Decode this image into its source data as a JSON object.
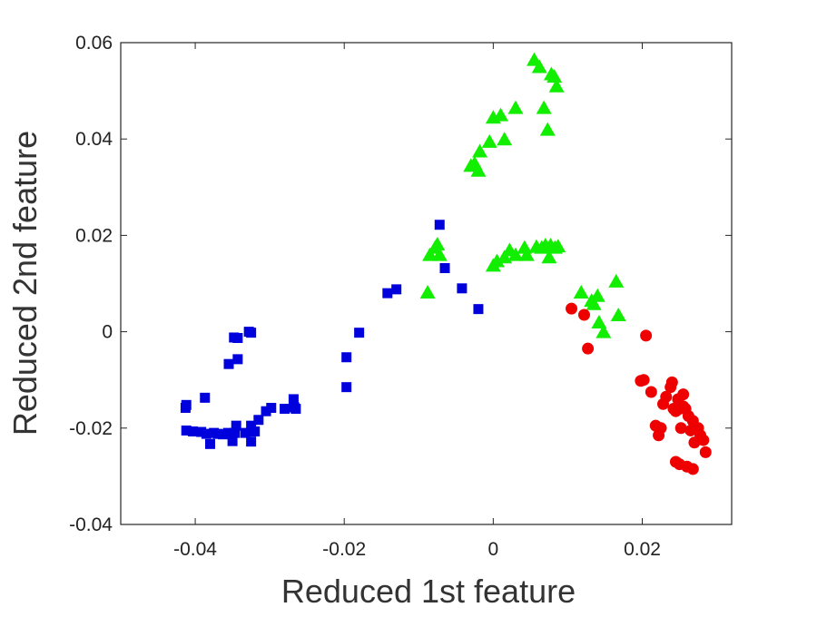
{
  "chart_data": {
    "type": "scatter",
    "title": "",
    "xlabel": "Reduced 1st feature",
    "ylabel": "Reduced 2nd feature",
    "xlim": [
      -0.05,
      0.032
    ],
    "ylim": [
      -0.04,
      0.06
    ],
    "xticks": [
      -0.04,
      -0.02,
      0,
      0.02
    ],
    "xtick_labels": [
      "-0.04",
      "-0.02",
      "0",
      "0.02"
    ],
    "yticks": [
      -0.04,
      -0.02,
      0,
      0.02,
      0.04,
      0.06
    ],
    "ytick_labels": [
      "-0.04",
      "-0.02",
      "0",
      "0.02",
      "0.04",
      "0.06"
    ],
    "grid": false,
    "legend": "none",
    "series": [
      {
        "marker": "square",
        "color": "#0000dd",
        "points": [
          [
            -0.0413,
            -0.0158
          ],
          [
            -0.0412,
            -0.0152
          ],
          [
            -0.0412,
            -0.0205
          ],
          [
            -0.0403,
            -0.0207
          ],
          [
            -0.0392,
            -0.0208
          ],
          [
            -0.0387,
            -0.0137
          ],
          [
            -0.0385,
            -0.0212
          ],
          [
            -0.038,
            -0.0233
          ],
          [
            -0.0375,
            -0.021
          ],
          [
            -0.037,
            -0.0212
          ],
          [
            -0.0363,
            -0.0213
          ],
          [
            -0.0356,
            -0.021
          ],
          [
            -0.0355,
            -0.0067
          ],
          [
            -0.035,
            -0.0227
          ],
          [
            -0.0348,
            -0.0012
          ],
          [
            -0.0347,
            -0.021
          ],
          [
            -0.0345,
            -0.0195
          ],
          [
            -0.0343,
            -0.0013
          ],
          [
            -0.0343,
            -0.0057
          ],
          [
            -0.0333,
            -0.021
          ],
          [
            -0.0328,
            0.0
          ],
          [
            -0.0325,
            -0.0002
          ],
          [
            -0.0325,
            -0.0228
          ],
          [
            -0.0325,
            -0.0195
          ],
          [
            -0.032,
            -0.0207
          ],
          [
            -0.0315,
            -0.0183
          ],
          [
            -0.0305,
            -0.0165
          ],
          [
            -0.0298,
            -0.0158
          ],
          [
            -0.028,
            -0.016
          ],
          [
            -0.0268,
            -0.014
          ],
          [
            -0.0267,
            -0.0157
          ],
          [
            -0.0265,
            -0.016
          ],
          [
            -0.0197,
            -0.0053
          ],
          [
            -0.0197,
            -0.0115
          ],
          [
            -0.018,
            -0.0002
          ],
          [
            -0.0142,
            0.008
          ],
          [
            -0.013,
            0.0088
          ],
          [
            -0.0072,
            0.0222
          ],
          [
            -0.0065,
            0.0132
          ],
          [
            -0.0042,
            0.009
          ],
          [
            -0.002,
            0.0047
          ]
        ]
      },
      {
        "marker": "triangle",
        "color": "#11ee00",
        "points": [
          [
            -0.0088,
            0.0082
          ],
          [
            -0.0085,
            0.016
          ],
          [
            -0.0078,
            0.0175
          ],
          [
            -0.0075,
            0.0182
          ],
          [
            -0.0072,
            0.016
          ],
          [
            -0.003,
            0.0345
          ],
          [
            -0.0025,
            0.035
          ],
          [
            -0.002,
            0.0335
          ],
          [
            -0.0018,
            0.0375
          ],
          [
            -0.0005,
            0.0395
          ],
          [
            0.0,
            0.0445
          ],
          [
            0.0,
            0.0138
          ],
          [
            0.0005,
            0.0147
          ],
          [
            0.001,
            0.045
          ],
          [
            0.0015,
            0.0155
          ],
          [
            0.0015,
            0.04
          ],
          [
            0.0022,
            0.017
          ],
          [
            0.003,
            0.0465
          ],
          [
            0.003,
            0.016
          ],
          [
            0.0042,
            0.0175
          ],
          [
            0.0045,
            0.016
          ],
          [
            0.0055,
            0.0565
          ],
          [
            0.0058,
            0.0177
          ],
          [
            0.0062,
            0.055
          ],
          [
            0.0065,
            0.0175
          ],
          [
            0.0068,
            0.0465
          ],
          [
            0.007,
            0.018
          ],
          [
            0.0073,
            0.042
          ],
          [
            0.0075,
            0.0155
          ],
          [
            0.0077,
            0.018
          ],
          [
            0.0078,
            0.0535
          ],
          [
            0.0082,
            0.053
          ],
          [
            0.0083,
            0.0175
          ],
          [
            0.0085,
            0.051
          ],
          [
            0.0087,
            0.0178
          ],
          [
            0.0118,
            0.0082
          ],
          [
            0.0132,
            0.0065
          ],
          [
            0.0135,
            0.0058
          ],
          [
            0.014,
            0.0075
          ],
          [
            0.0142,
            0.002
          ],
          [
            0.0148,
            0.0
          ],
          [
            0.0165,
            0.0105
          ],
          [
            0.0168,
            0.0035
          ]
        ]
      },
      {
        "marker": "circle",
        "color": "#ee0000",
        "points": [
          [
            0.0105,
            0.0048
          ],
          [
            0.0122,
            0.0035
          ],
          [
            0.0127,
            -0.0035
          ],
          [
            0.0198,
            -0.0102
          ],
          [
            0.0202,
            -0.01
          ],
          [
            0.0205,
            -0.0008
          ],
          [
            0.0212,
            -0.0125
          ],
          [
            0.0218,
            -0.0195
          ],
          [
            0.0222,
            -0.0215
          ],
          [
            0.0225,
            -0.02
          ],
          [
            0.0228,
            -0.015
          ],
          [
            0.0232,
            -0.0135
          ],
          [
            0.0238,
            -0.0115
          ],
          [
            0.024,
            -0.0105
          ],
          [
            0.0242,
            -0.016
          ],
          [
            0.0245,
            -0.0165
          ],
          [
            0.0245,
            -0.027
          ],
          [
            0.0248,
            -0.014
          ],
          [
            0.025,
            -0.016
          ],
          [
            0.025,
            -0.0275
          ],
          [
            0.0252,
            -0.02
          ],
          [
            0.0255,
            -0.013
          ],
          [
            0.0255,
            -0.0155
          ],
          [
            0.0258,
            -0.016
          ],
          [
            0.026,
            -0.028
          ],
          [
            0.0262,
            -0.0175
          ],
          [
            0.0265,
            -0.0205
          ],
          [
            0.0268,
            -0.0185
          ],
          [
            0.0268,
            -0.0285
          ],
          [
            0.027,
            -0.023
          ],
          [
            0.0272,
            -0.02
          ],
          [
            0.0275,
            -0.02
          ],
          [
            0.0278,
            -0.0215
          ],
          [
            0.0282,
            -0.0225
          ],
          [
            0.0285,
            -0.025
          ]
        ]
      }
    ]
  }
}
